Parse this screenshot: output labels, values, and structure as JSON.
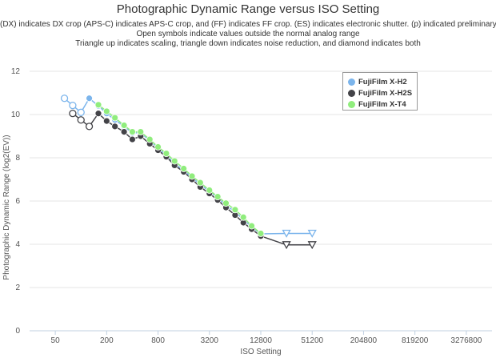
{
  "title": "Photographic Dynamic Range versus ISO Setting",
  "subtitle_lines": [
    "(DX) indicates DX crop (APS-C) indicates APS-C crop, and (FF) indicates FF crop. (ES) indicates electronic shutter. (p) indicated preliminary data.",
    "Open symbols indicate values outside the normal analog range",
    "Triangle up indicates scaling, triangle down indicates noise reduction, and diamond indicates both"
  ],
  "chart_data": {
    "type": "line",
    "title": "Photographic Dynamic Range versus ISO Setting",
    "xlabel": "ISO Setting",
    "ylabel": "Photographic Dynamic Range (log2(EV))",
    "x_scale": "log2",
    "xlim": [
      25,
      6553600
    ],
    "ylim": [
      0,
      12
    ],
    "x_ticks": [
      "50",
      "200",
      "800",
      "3200",
      "12800",
      "51200",
      "204800",
      "819200",
      "3276800"
    ],
    "y_ticks": [
      "0",
      "2",
      "4",
      "6",
      "8",
      "10",
      "12"
    ],
    "grid": "horizontal",
    "legend_position": "top-right",
    "series": [
      {
        "name": "FujiFilm X-H2",
        "color": "#7cb5ec",
        "points": [
          {
            "x": 64,
            "y": 10.75,
            "marker": "circle-open"
          },
          {
            "x": 80,
            "y": 10.42,
            "marker": "circle-open"
          },
          {
            "x": 100,
            "y": 10.1,
            "marker": "circle-open"
          },
          {
            "x": 125,
            "y": 10.75,
            "marker": "circle"
          },
          {
            "x": 160,
            "y": 10.4,
            "marker": "circle"
          },
          {
            "x": 200,
            "y": 10.05,
            "marker": "circle"
          },
          {
            "x": 250,
            "y": 9.75,
            "marker": "circle"
          },
          {
            "x": 320,
            "y": 9.45,
            "marker": "circle"
          },
          {
            "x": 400,
            "y": 9.15,
            "marker": "circle"
          },
          {
            "x": 500,
            "y": 9.15,
            "marker": "circle"
          },
          {
            "x": 640,
            "y": 8.8,
            "marker": "circle"
          },
          {
            "x": 800,
            "y": 8.45,
            "marker": "circle"
          },
          {
            "x": 1000,
            "y": 8.1,
            "marker": "circle"
          },
          {
            "x": 1250,
            "y": 7.75,
            "marker": "circle"
          },
          {
            "x": 1600,
            "y": 7.4,
            "marker": "circle"
          },
          {
            "x": 2000,
            "y": 7.1,
            "marker": "circle"
          },
          {
            "x": 2500,
            "y": 6.75,
            "marker": "circle"
          },
          {
            "x": 3200,
            "y": 6.45,
            "marker": "circle"
          },
          {
            "x": 4000,
            "y": 6.15,
            "marker": "circle"
          },
          {
            "x": 5000,
            "y": 5.8,
            "marker": "circle"
          },
          {
            "x": 6400,
            "y": 5.5,
            "marker": "circle"
          },
          {
            "x": 8000,
            "y": 5.15,
            "marker": "circle"
          },
          {
            "x": 10000,
            "y": 4.8,
            "marker": "circle"
          },
          {
            "x": 12800,
            "y": 4.48,
            "marker": "circle"
          },
          {
            "x": 25600,
            "y": 4.5,
            "marker": "triangle-down-open"
          },
          {
            "x": 51200,
            "y": 4.5,
            "marker": "triangle-down-open"
          }
        ]
      },
      {
        "name": "FujiFilm X-H2S",
        "color": "#434348",
        "points": [
          {
            "x": 80,
            "y": 10.05,
            "marker": "circle-open"
          },
          {
            "x": 100,
            "y": 9.75,
            "marker": "circle-open"
          },
          {
            "x": 125,
            "y": 9.45,
            "marker": "circle-open"
          },
          {
            "x": 160,
            "y": 10.05,
            "marker": "circle"
          },
          {
            "x": 200,
            "y": 9.7,
            "marker": "circle"
          },
          {
            "x": 250,
            "y": 9.45,
            "marker": "circle"
          },
          {
            "x": 320,
            "y": 9.2,
            "marker": "circle"
          },
          {
            "x": 400,
            "y": 8.85,
            "marker": "circle"
          },
          {
            "x": 500,
            "y": 9.0,
            "marker": "circle"
          },
          {
            "x": 640,
            "y": 8.65,
            "marker": "circle"
          },
          {
            "x": 800,
            "y": 8.35,
            "marker": "circle"
          },
          {
            "x": 1000,
            "y": 8.05,
            "marker": "circle"
          },
          {
            "x": 1250,
            "y": 7.65,
            "marker": "circle"
          },
          {
            "x": 1600,
            "y": 7.35,
            "marker": "circle"
          },
          {
            "x": 2000,
            "y": 7.0,
            "marker": "circle"
          },
          {
            "x": 2500,
            "y": 6.65,
            "marker": "circle"
          },
          {
            "x": 3200,
            "y": 6.35,
            "marker": "circle"
          },
          {
            "x": 4000,
            "y": 6.05,
            "marker": "circle"
          },
          {
            "x": 5000,
            "y": 5.7,
            "marker": "circle"
          },
          {
            "x": 6400,
            "y": 5.35,
            "marker": "circle"
          },
          {
            "x": 8000,
            "y": 5.0,
            "marker": "circle"
          },
          {
            "x": 10000,
            "y": 4.7,
            "marker": "circle"
          },
          {
            "x": 12800,
            "y": 4.38,
            "marker": "circle"
          },
          {
            "x": 25600,
            "y": 3.97,
            "marker": "triangle-down-open"
          },
          {
            "x": 51200,
            "y": 3.97,
            "marker": "triangle-down-open"
          }
        ]
      },
      {
        "name": "FujiFilm X-T4",
        "color": "#90ed7d",
        "points": [
          {
            "x": 160,
            "y": 10.45,
            "marker": "circle"
          },
          {
            "x": 200,
            "y": 10.15,
            "marker": "circle"
          },
          {
            "x": 250,
            "y": 9.85,
            "marker": "circle"
          },
          {
            "x": 320,
            "y": 9.5,
            "marker": "circle"
          },
          {
            "x": 400,
            "y": 9.2,
            "marker": "circle"
          },
          {
            "x": 500,
            "y": 9.2,
            "marker": "circle"
          },
          {
            "x": 640,
            "y": 8.85,
            "marker": "circle"
          },
          {
            "x": 800,
            "y": 8.5,
            "marker": "circle"
          },
          {
            "x": 1000,
            "y": 8.2,
            "marker": "circle"
          },
          {
            "x": 1250,
            "y": 7.85,
            "marker": "circle"
          },
          {
            "x": 1600,
            "y": 7.5,
            "marker": "circle"
          },
          {
            "x": 2000,
            "y": 7.15,
            "marker": "circle"
          },
          {
            "x": 2500,
            "y": 6.85,
            "marker": "circle"
          },
          {
            "x": 3200,
            "y": 6.5,
            "marker": "circle"
          },
          {
            "x": 4000,
            "y": 6.2,
            "marker": "circle"
          },
          {
            "x": 5000,
            "y": 5.9,
            "marker": "circle"
          },
          {
            "x": 6400,
            "y": 5.6,
            "marker": "circle"
          },
          {
            "x": 8000,
            "y": 5.25,
            "marker": "circle"
          },
          {
            "x": 10000,
            "y": 4.85,
            "marker": "circle"
          },
          {
            "x": 12800,
            "y": 4.5,
            "marker": "circle"
          }
        ]
      }
    ]
  }
}
